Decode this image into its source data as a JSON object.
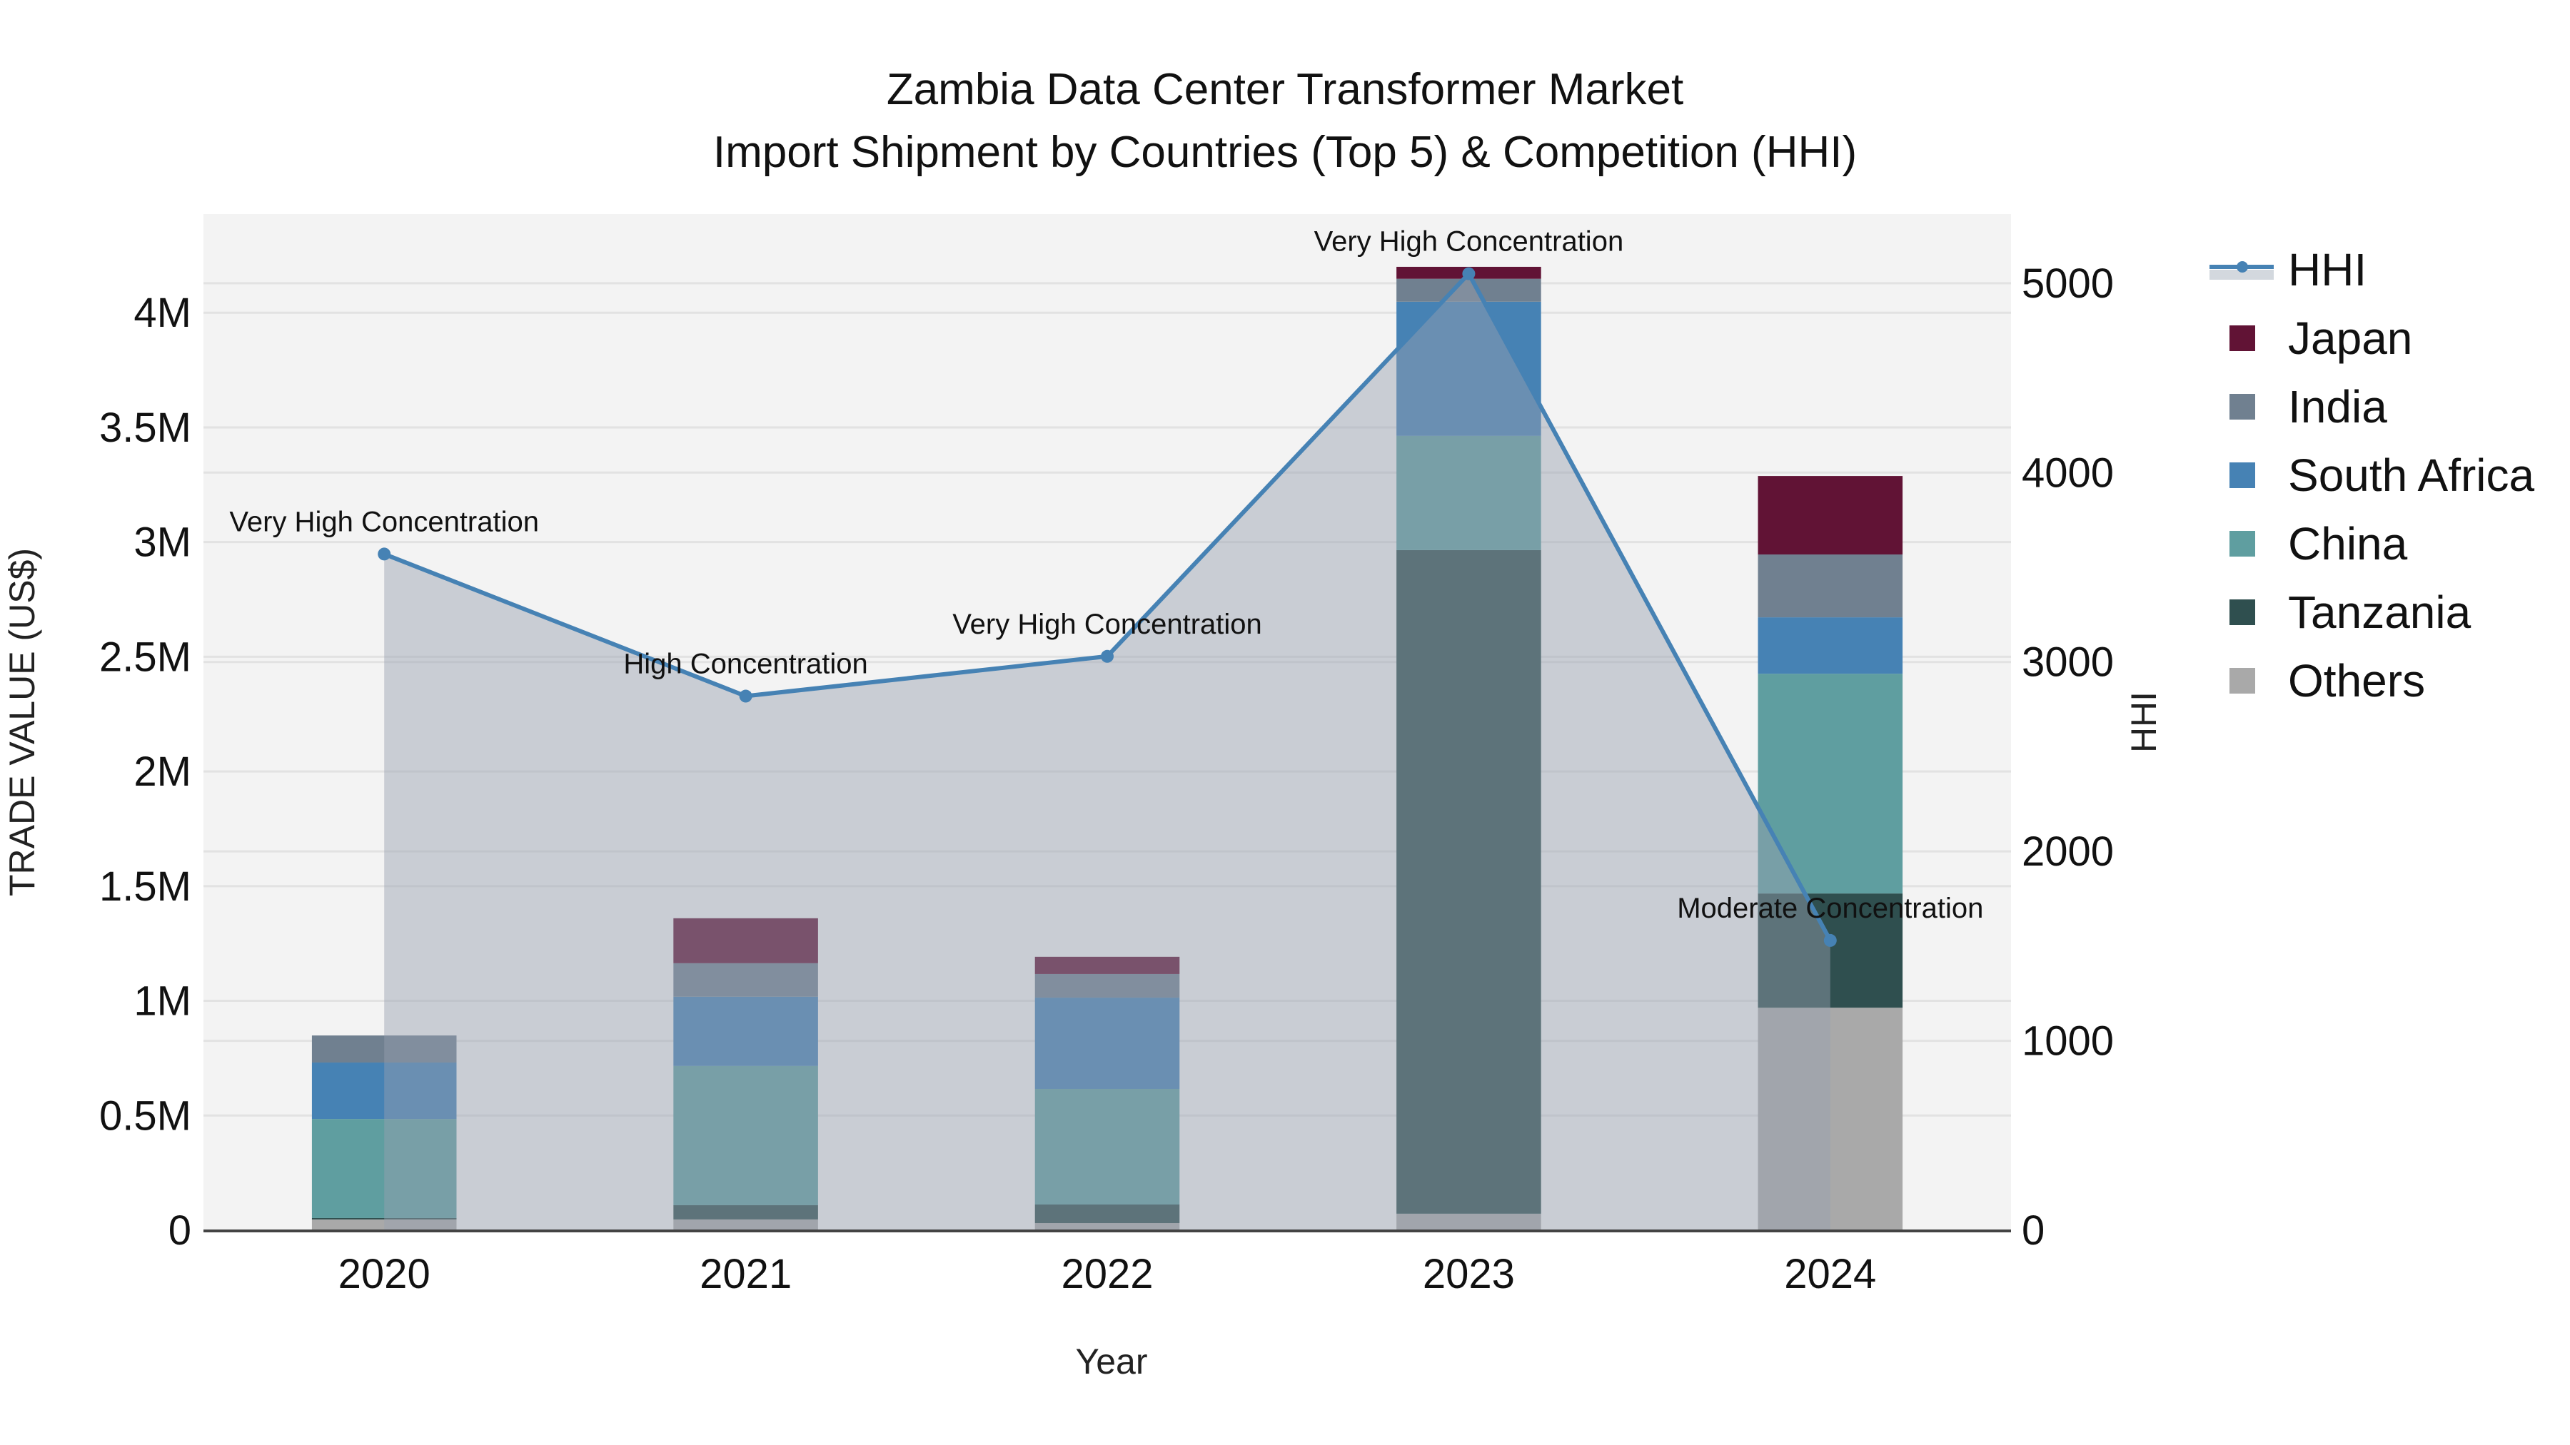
{
  "title": {
    "line1": "Zambia Data Center Transformer Market",
    "line2": "Import Shipment by Countries (Top 5) & Competition (HHI)"
  },
  "axes": {
    "x_title": "Year",
    "y_title": "TRADE VALUE (US$)",
    "y2_title": "HHI",
    "y_ticks": [
      "0",
      "0.5M",
      "1M",
      "1.5M",
      "2M",
      "2.5M",
      "3M",
      "3.5M",
      "4M"
    ],
    "y2_ticks": [
      "0",
      "1000",
      "2000",
      "3000",
      "4000",
      "5000"
    ]
  },
  "legend": [
    {
      "label": "HHI",
      "kind": "line",
      "color": "#4682b4"
    },
    {
      "label": "Japan",
      "kind": "bar",
      "color": "#611335"
    },
    {
      "label": "India",
      "kind": "bar",
      "color": "#708090"
    },
    {
      "label": "South Africa",
      "kind": "bar",
      "color": "#4682b4"
    },
    {
      "label": "China",
      "kind": "bar",
      "color": "#5f9ea0"
    },
    {
      "label": "Tanzania",
      "kind": "bar",
      "color": "#2f4f4f"
    },
    {
      "label": "Others",
      "kind": "bar",
      "color": "#a9a9a9"
    }
  ],
  "chart_data": {
    "type": "bar",
    "stacked": true,
    "title": "Zambia Data Center Transformer Market — Import Shipment by Countries (Top 5) & Competition (HHI)",
    "xlabel": "Year",
    "ylabel": "TRADE VALUE (US$)",
    "y2label": "HHI",
    "categories": [
      "2020",
      "2021",
      "2022",
      "2023",
      "2024"
    ],
    "ylim": [
      0,
      4430000
    ],
    "y2lim": [
      0,
      5365
    ],
    "grid": true,
    "legend_position": "right",
    "series": [
      {
        "name": "Others",
        "color": "#a9a9a9",
        "values": [
          47000,
          47000,
          31000,
          72000,
          970000
        ]
      },
      {
        "name": "Tanzania",
        "color": "#2f4f4f",
        "values": [
          6000,
          62000,
          81000,
          2893000,
          498000
        ]
      },
      {
        "name": "China",
        "color": "#5f9ea0",
        "values": [
          432000,
          607000,
          504000,
          498000,
          958000
        ]
      },
      {
        "name": "South Africa",
        "color": "#4682b4",
        "values": [
          246000,
          302000,
          398000,
          585000,
          246000
        ]
      },
      {
        "name": "India",
        "color": "#708090",
        "values": [
          118000,
          146000,
          103000,
          100000,
          274000
        ]
      },
      {
        "name": "Japan",
        "color": "#611335",
        "values": [
          0,
          196000,
          75000,
          52000,
          342000
        ]
      }
    ],
    "line_series": {
      "name": "HHI",
      "axis": "y2",
      "color": "#4682b4",
      "fill": "tozeroy",
      "values": [
        3570,
        2820,
        3030,
        5050,
        1530
      ]
    },
    "annotations": [
      {
        "x": "2020",
        "text": "Very High Concentration"
      },
      {
        "x": "2021",
        "text": "High Concentration"
      },
      {
        "x": "2022",
        "text": "Very High Concentration"
      },
      {
        "x": "2023",
        "text": "Very High Concentration"
      },
      {
        "x": "2024",
        "text": "Moderate Concentration"
      }
    ]
  }
}
